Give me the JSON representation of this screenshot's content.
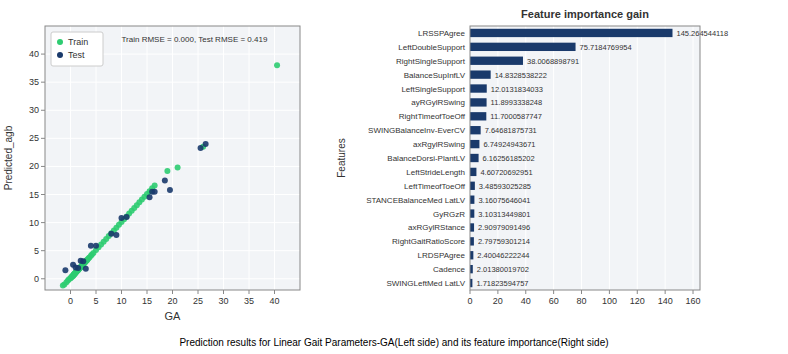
{
  "title": "Prediction results for Linear Gait Parameters-GA(Left side) and its feature importance(Right side)",
  "chart_data": [
    {
      "type": "scatter",
      "annotations": [
        "Train RMSE = 0.000, Test RMSE = 0.419"
      ],
      "x_label": "GA",
      "y_label": "Predicted_agb",
      "xlim": [
        -5,
        45
      ],
      "ylim": [
        -2,
        45
      ],
      "xticks": [
        0,
        5,
        10,
        15,
        20,
        25,
        30,
        35,
        40
      ],
      "yticks": [
        0,
        5,
        10,
        15,
        20,
        25,
        30,
        35,
        40
      ],
      "grid": true,
      "legend": "upper left",
      "series": [
        {
          "name": "Train",
          "color": "#2ecc71",
          "marker": "circle",
          "x": [
            -1.5,
            -1.2,
            -0.8,
            -0.5,
            -0.3,
            0,
            0.1,
            0.2,
            0.3,
            0.4,
            0.5,
            0.5,
            0.6,
            0.7,
            0.7,
            0.8,
            0.8,
            0.9,
            1,
            1,
            1.1,
            1.2,
            1.3,
            1.4,
            1.5,
            1.5,
            1.6,
            1.7,
            1.8,
            1.9,
            2,
            2,
            2.1,
            2.2,
            2.3,
            2.3,
            2.4,
            2.5,
            2.5,
            2.6,
            2.7,
            2.8,
            2.9,
            3,
            3.1,
            3.2,
            3.3,
            3.5,
            3.7,
            4,
            4.2,
            4.5,
            5,
            5.5,
            6,
            6.5,
            7,
            7.5,
            8,
            8.5,
            9,
            9.5,
            10,
            10.5,
            11,
            11.5,
            12,
            12.5,
            13,
            13.5,
            14,
            14.5,
            15,
            15.5,
            16,
            16.5,
            19,
            21,
            26,
            40.5
          ],
          "values": [
            -1.2,
            -1.0,
            -0.6,
            -0.3,
            -0.1,
            0.1,
            0.2,
            0.3,
            0.4,
            0.5,
            0.6,
            0.5,
            0.7,
            0.8,
            0.75,
            0.9,
            0.85,
            1.0,
            1.1,
            1.05,
            1.2,
            1.3,
            1.4,
            1.5,
            1.6,
            1.55,
            1.7,
            1.8,
            1.9,
            2.0,
            2.1,
            2.0,
            2.2,
            2.3,
            2.4,
            2.35,
            2.5,
            2.6,
            2.55,
            2.7,
            2.8,
            2.9,
            3.0,
            3.1,
            3.2,
            3.3,
            3.4,
            3.6,
            3.8,
            4.1,
            4.3,
            4.6,
            5.1,
            5.6,
            6.1,
            6.6,
            7.1,
            7.6,
            8.1,
            8.6,
            9.1,
            9.6,
            10.1,
            10.6,
            11.1,
            11.6,
            12.1,
            12.6,
            13.1,
            13.6,
            14.1,
            14.6,
            15.1,
            15.6,
            16.1,
            16.6,
            19.2,
            19.8,
            23.5,
            38.0
          ]
        },
        {
          "name": "Test",
          "color": "#1a3a6b",
          "marker": "circle",
          "x": [
            -1.0,
            0.5,
            1.0,
            1.5,
            2.0,
            2.5,
            3.0,
            4.0,
            5.0,
            8.0,
            9.0,
            10.0,
            11.0,
            15.5,
            16.0,
            16.5,
            18.5,
            19.5,
            25.5,
            26.5
          ],
          "values": [
            1.5,
            2.5,
            2.0,
            1.9,
            3.2,
            3.1,
            1.8,
            5.9,
            5.9,
            8.0,
            7.8,
            10.8,
            11.0,
            14.5,
            15.5,
            15.5,
            17.5,
            15.8,
            23.3,
            24.0
          ]
        }
      ]
    },
    {
      "type": "bar",
      "orientation": "horizontal",
      "title": "Feature importance gain",
      "y_label": "Features",
      "xlim": [
        0,
        165
      ],
      "xticks": [
        0,
        20,
        40,
        60,
        80,
        100,
        120,
        140,
        160
      ],
      "grid": true,
      "data_labels": true,
      "color": "#1a3a6b",
      "categories": [
        "LRSSPAgree",
        "LeftDoubleSupport",
        "RightSingleSupport",
        "BalanceSupInfLV",
        "LeftSingleSupport",
        "ayRGylRSwing",
        "RightTimeofToeOff",
        "SWINGBalanceInv-EverCV",
        "axRgylRSwing",
        "BalanceDorsi-PlantLV",
        "LeftStrideLength",
        "LeftTimeofToeOff",
        "STANCEBalanceMed LatLV",
        "GyRGzR",
        "axRGylRStance",
        "RightGaitRatioScore",
        "LRDSPAgree",
        "Cadence",
        "SWINGLeftMed LatLV"
      ],
      "values": [
        145.264544118,
        75.7184769954,
        38.0068898791,
        14.8328538222,
        12.0131834033,
        11.8993338248,
        11.7000587747,
        7.64681875731,
        6.74924943671,
        6.16256185202,
        4.60720692951,
        3.48593025285,
        3.16075646041,
        3.10313449801,
        2.90979091496,
        2.79759301214,
        2.40046222244,
        2.01380019702,
        1.71823594757
      ],
      "value_labels": [
        "145.264544118",
        "75.7184769954",
        "38.0068898791",
        "14.8328538222",
        "12.0131834033",
        "11.8993338248",
        "11.7000587747",
        "7.64681875731",
        "6.74924943671",
        "6.16256185202",
        "4.60720692951",
        "3.48593025285",
        "3.16075646041",
        "3.10313449801",
        "2.90979091496",
        "2.79759301214",
        "2.40046222244",
        "2.01380019702",
        "1.71823594757"
      ]
    }
  ]
}
